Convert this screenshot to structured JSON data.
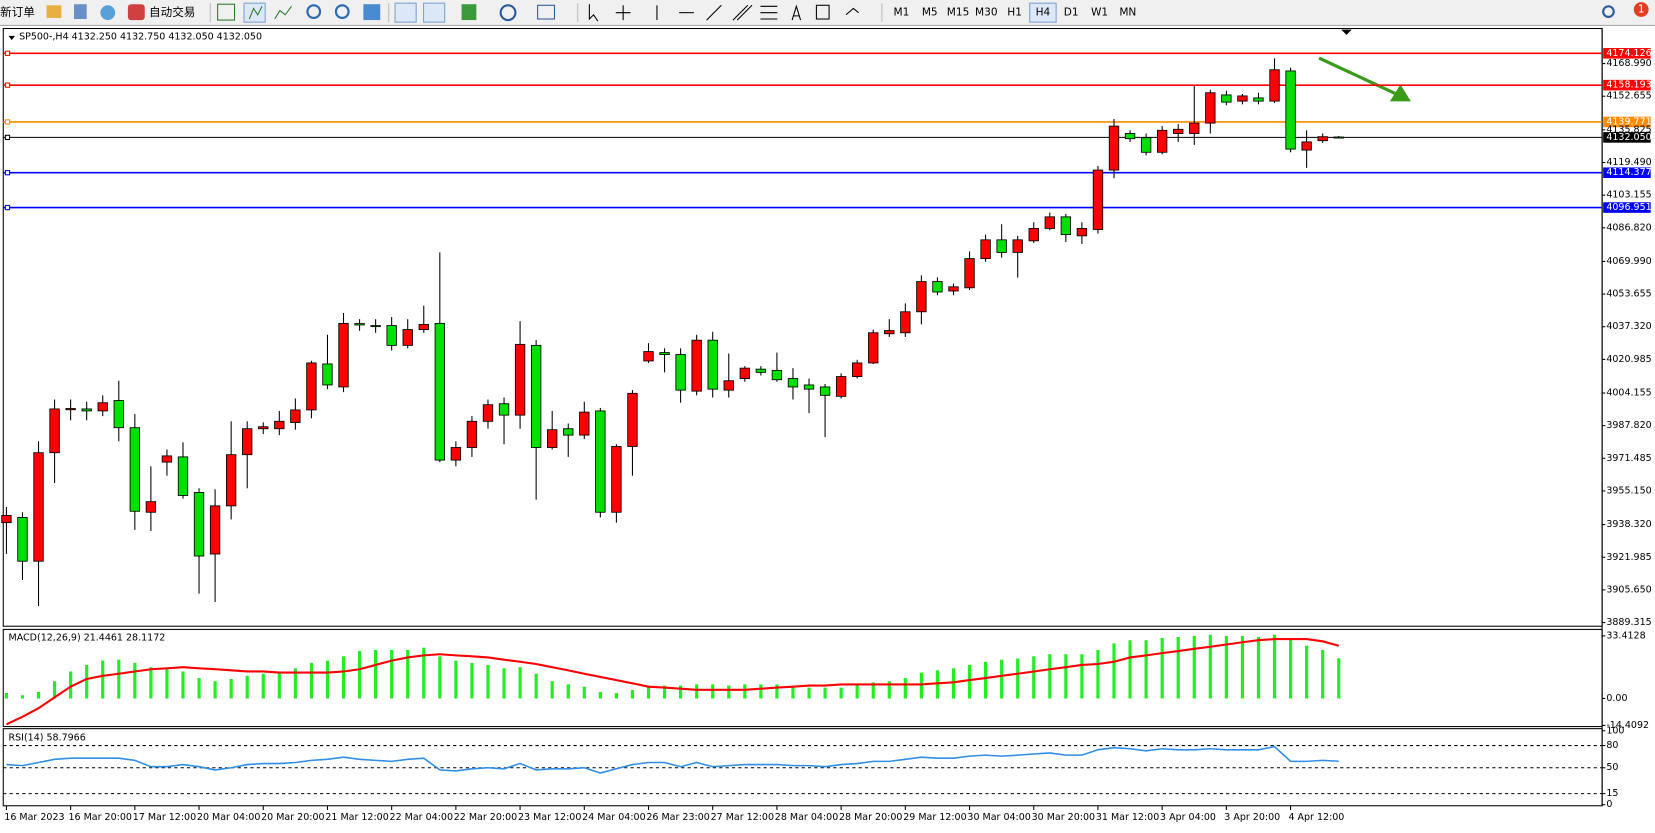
{
  "toolbar": {
    "new_order": "新订单",
    "auto_trading": "自动交易",
    "timeframes": [
      "M1",
      "M5",
      "M15",
      "M30",
      "H1",
      "H4",
      "D1",
      "W1",
      "MN"
    ],
    "active_timeframe": "H4",
    "alerts": "1"
  },
  "chart_data": [
    {
      "type": "candlestick",
      "title": "SP500-,H4  4132.250 4132.750 4132.050 4132.050",
      "up_color": "#ff0000",
      "down_color": "#00e000",
      "categories": [
        "16 Mar 2023",
        null,
        null,
        null,
        "16 Mar 20:00",
        null,
        null,
        null,
        "17 Mar 12:00",
        null,
        null,
        null,
        "20 Mar 04:00",
        null,
        null,
        null,
        "20 Mar 20:00",
        null,
        null,
        null,
        "21 Mar 12:00",
        null,
        null,
        null,
        "22 Mar 04:00",
        null,
        null,
        null,
        "22 Mar 20:00",
        null,
        null,
        null,
        "23 Mar 12:00",
        null,
        null,
        null,
        "24 Mar 04:00",
        null,
        null,
        null,
        "26 Mar 23:00",
        null,
        null,
        null,
        "27 Mar 12:00",
        null,
        null,
        null,
        "28 Mar 04:00",
        null,
        null,
        null,
        "28 Mar 20:00",
        null,
        null,
        null,
        "29 Mar 12:00",
        null,
        null,
        null,
        "30 Mar 04:00",
        null,
        null,
        null,
        "30 Mar 20:00",
        null,
        null,
        null,
        "31 Mar 12:00",
        null,
        null,
        null,
        "3 Apr 04:00",
        null,
        null,
        null,
        "3 Apr 20:00",
        null,
        null,
        null,
        "4 Apr 12:00",
        null,
        null,
        null
      ],
      "open": [
        3939.3,
        3941.9,
        3920.0,
        3974.3,
        3995.8,
        3996.2,
        3995.2,
        4000.4,
        3986.8,
        3944.5,
        3969.6,
        3972.2,
        3954.4,
        3923.6,
        3947.7,
        3973.3,
        3986.3,
        3986.3,
        3989.4,
        3995.7,
        4018.7,
        4007.2,
        4038.9,
        4037.9,
        4037.9,
        4028.0,
        4035.9,
        4039.0,
        3970.6,
        3976.9,
        3990.0,
        3998.8,
        3993.1,
        4028.0,
        3976.9,
        3986.3,
        3983.1,
        3995.2,
        3944.5,
        3977.4,
        4020.2,
        4024.4,
        4023.4,
        4005.1,
        4030.6,
        4005.6,
        4011.4,
        4016.1,
        4015.5,
        4011.4,
        4008.2,
        4007.2,
        4002.5,
        4012.4,
        4019.2,
        4033.8,
        4034.3,
        4044.8,
        4059.9,
        4055.2,
        4056.8,
        4071.4,
        4080.8,
        4074.5,
        4080.3,
        4086.5,
        4092.3,
        4082.8,
        4086.0,
        4115.7,
        4134.0,
        4131.9,
        4124.6,
        4134.0,
        4134.0,
        4139.2,
        4153.3,
        4150.2,
        4151.8,
        4150.2,
        4165.3,
        4125.7,
        4130.4,
        4132.25
      ],
      "high": [
        3947.1,
        3944.5,
        3980.0,
        4000.9,
        4000.9,
        3999.8,
        4003.0,
        4010.3,
        3993.6,
        3967.5,
        3975.9,
        3979.5,
        3956.5,
        3956.0,
        3990.0,
        3990.0,
        3989.5,
        3995.2,
        4001.4,
        4020.3,
        4033.3,
        4044.2,
        4041.1,
        4041.1,
        4042.2,
        4041.1,
        4047.9,
        4074.5,
        3980.0,
        3992.6,
        4000.9,
        4001.9,
        4040.1,
        4030.6,
        3995.2,
        3988.9,
        3999.8,
        3996.7,
        3978.5,
        4005.6,
        4029.1,
        4026.5,
        4026.5,
        4033.3,
        4034.8,
        4023.9,
        4017.6,
        4017.6,
        4024.4,
        4016.6,
        4011.4,
        4008.7,
        4014.0,
        4020.8,
        4035.9,
        4041.1,
        4049.0,
        4063.0,
        4062.0,
        4058.9,
        4075.0,
        4083.4,
        4088.6,
        4082.8,
        4089.6,
        4094.4,
        4093.8,
        4089.6,
        4117.8,
        4141.3,
        4135.6,
        4134.0,
        4137.7,
        4138.7,
        4158.0,
        4155.9,
        4155.4,
        4153.8,
        4154.4,
        4171.6,
        4166.9,
        4135.6,
        4134.0,
        4132.75
      ],
      "low": [
        3923.6,
        3910.6,
        3897.6,
        3959.1,
        3990.5,
        3990.5,
        3992.6,
        3980.0,
        3935.7,
        3935.1,
        3962.8,
        3951.3,
        3903.8,
        3899.6,
        3940.9,
        3956.5,
        3983.6,
        3983.1,
        3985.8,
        3991.5,
        4006.1,
        4004.6,
        4035.3,
        4034.3,
        4025.4,
        4026.5,
        4034.3,
        3969.6,
        3967.5,
        3972.2,
        3986.3,
        3978.5,
        3986.3,
        3950.8,
        3975.9,
        3972.2,
        3981.1,
        3941.9,
        3939.3,
        3962.8,
        4019.2,
        4014.5,
        3999.3,
        4003.0,
        4001.9,
        4001.9,
        4009.8,
        4012.9,
        4009.8,
        4000.9,
        3994.1,
        3982.1,
        4001.4,
        4011.4,
        4018.7,
        4032.2,
        4032.2,
        4038.5,
        4053.1,
        4053.1,
        4055.7,
        4069.8,
        4071.9,
        4061.9,
        4079.2,
        4085.5,
        4079.7,
        4078.7,
        4083.9,
        4111.6,
        4129.8,
        4123.1,
        4123.6,
        4129.8,
        4128.3,
        4134.0,
        4148.1,
        4148.6,
        4148.6,
        4149.2,
        4124.6,
        4116.8,
        4129.3,
        4132.05
      ],
      "close": [
        3942.9,
        3920.0,
        3974.3,
        3996.2,
        3996.4,
        3995.2,
        3999.3,
        3986.8,
        3945.0,
        3949.8,
        3972.7,
        3952.9,
        3922.6,
        3947.7,
        3973.3,
        3986.3,
        3987.3,
        3990.0,
        3995.7,
        4019.2,
        4008.2,
        4039.0,
        4038.2,
        4037.5,
        4028.0,
        4035.9,
        4038.5,
        3970.6,
        3976.9,
        3990.0,
        3998.3,
        3993.1,
        4028.5,
        3976.9,
        3985.8,
        3983.1,
        3994.6,
        3944.5,
        3977.4,
        4004.0,
        4024.9,
        4023.4,
        4005.6,
        4030.6,
        4006.1,
        4010.3,
        4016.6,
        4014.5,
        4010.8,
        4007.2,
        4006.1,
        4003.0,
        4012.4,
        4019.2,
        4034.3,
        4035.4,
        4044.8,
        4059.9,
        4054.7,
        4057.3,
        4071.4,
        4080.8,
        4074.5,
        4080.8,
        4086.5,
        4092.3,
        4083.4,
        4086.5,
        4115.7,
        4137.7,
        4131.4,
        4124.6,
        4135.6,
        4136.1,
        4139.2,
        4154.4,
        4149.7,
        4152.8,
        4150.2,
        4165.9,
        4126.2,
        4129.8,
        4132.4,
        4132.05
      ],
      "ylim": [
        3888,
        4186
      ],
      "yticks": [
        {
          "value": 4168.99,
          "label": "4168.990"
        },
        4152.655,
        4135.825,
        {
          "value": 4119.49,
          "label": "4119.490"
        },
        4103.155,
        {
          "value": 4086.82,
          "label": "4086.820"
        },
        {
          "value": 4069.99,
          "label": "4069.990"
        },
        4053.655,
        {
          "value": 4037.32,
          "label": "4037.320"
        },
        4020.985,
        4004.155,
        {
          "value": 3987.82,
          "label": "3987.820"
        },
        3971.485,
        {
          "value": 3955.15,
          "label": "3955.150"
        },
        {
          "value": 3938.32,
          "label": "3938.320"
        },
        3921.985,
        {
          "value": 3905.65,
          "label": "3905.650"
        },
        3889.315
      ],
      "levels": [
        {
          "price": 4174.126,
          "label": "4174.126",
          "color": "#ff0000"
        },
        {
          "price": 4158.193,
          "label": "4158.193",
          "color": "#ff0000"
        },
        {
          "price": 4139.771,
          "label": "4139.771",
          "color": "#ff8c00"
        },
        {
          "price": 4132.05,
          "label": "4132.050",
          "color": "#000000"
        },
        {
          "price": 4114.377,
          "label": "4114.377",
          "color": "#0000ff"
        },
        {
          "price": 4096.951,
          "label": "4096.951",
          "color": "#0000ff"
        }
      ]
    },
    {
      "type": "macd",
      "title": "MACD(12,26,9) 21.4461 28.1172",
      "color": "#22ee22",
      "signal_color": "#ff0000",
      "values": [
        2.9,
        1.7,
        3.5,
        9.2,
        14.4,
        17.9,
        20.2,
        20.7,
        19.0,
        16.7,
        15.6,
        14.4,
        10.9,
        9.2,
        10.4,
        12.1,
        13.2,
        14.4,
        16.1,
        19.0,
        20.2,
        22.5,
        25.3,
        25.9,
        25.9,
        25.9,
        27.1,
        22.5,
        20.2,
        19.0,
        17.9,
        16.1,
        16.7,
        13.2,
        9.2,
        7.5,
        6.3,
        3.5,
        2.9,
        4.6,
        6.3,
        6.9,
        6.9,
        7.5,
        7.5,
        6.9,
        7.5,
        7.5,
        7.5,
        6.3,
        5.8,
        5.8,
        5.8,
        6.9,
        8.6,
        9.2,
        10.9,
        13.8,
        15.0,
        16.1,
        17.9,
        19.6,
        20.7,
        21.3,
        22.5,
        23.6,
        23.6,
        23.6,
        25.9,
        29.4,
        31.1,
        31.1,
        32.3,
        32.8,
        33.4,
        34.0,
        33.4,
        33.4,
        32.8,
        34.0,
        31.7,
        28.2,
        25.9,
        21.4461
      ],
      "signal": [
        -13.8,
        -9.8,
        -5.2,
        0.6,
        6.3,
        10.4,
        12.1,
        13.2,
        14.4,
        15.6,
        16.1,
        16.7,
        16.1,
        15.6,
        15.0,
        14.4,
        14.4,
        13.8,
        13.8,
        13.8,
        13.8,
        14.4,
        15.6,
        17.9,
        20.2,
        21.9,
        23.0,
        23.6,
        23.0,
        22.5,
        21.9,
        20.7,
        19.6,
        18.4,
        16.7,
        15.0,
        13.2,
        11.5,
        9.8,
        8.1,
        6.3,
        5.8,
        5.2,
        4.6,
        4.6,
        4.6,
        4.6,
        5.2,
        5.8,
        6.3,
        6.9,
        6.9,
        7.5,
        7.5,
        7.5,
        7.5,
        7.5,
        7.5,
        8.1,
        8.6,
        9.8,
        10.9,
        12.1,
        13.2,
        14.4,
        15.6,
        16.7,
        17.9,
        18.4,
        19.6,
        21.9,
        23.0,
        24.2,
        25.3,
        26.5,
        27.6,
        28.8,
        30.0,
        31.1,
        31.7,
        31.7,
        31.7,
        30.5,
        28.1172
      ],
      "ylim": [
        -15,
        36.3
      ],
      "yticks": [
        33.4128,
        {
          "value": 0,
          "label": "0.00"
        },
        -14.4092
      ]
    },
    {
      "type": "line",
      "title": "RSI(14) 58.7966",
      "color": "#2f8fe6",
      "values": [
        54.3,
        52.9,
        57.1,
        61.4,
        62.9,
        62.9,
        62.9,
        62.9,
        60,
        51.4,
        51.4,
        54.3,
        51.4,
        47.1,
        50,
        54.3,
        55.7,
        55.7,
        57.1,
        60,
        61.4,
        64.3,
        61.4,
        60,
        58.6,
        61.4,
        62.9,
        47.1,
        45.7,
        48.6,
        50,
        48.6,
        55.7,
        47.1,
        48.6,
        48.6,
        50,
        42.9,
        48.6,
        54.3,
        57.1,
        57.1,
        51.4,
        57.1,
        51.4,
        52.9,
        54.3,
        54.3,
        54.3,
        52.9,
        52.9,
        51.4,
        54.3,
        55.7,
        58.6,
        58.6,
        61.4,
        64.3,
        62.9,
        62.9,
        65.7,
        67.1,
        65.7,
        67.1,
        68.6,
        70,
        67.1,
        67.1,
        74.3,
        77.1,
        75.7,
        72.9,
        75.7,
        74.3,
        74.3,
        75.7,
        74.3,
        74.3,
        74.3,
        78.6,
        58.6,
        58.6,
        60,
        58.7966
      ],
      "ylim": [
        0,
        100
      ],
      "yticks": [
        100,
        80,
        50,
        15,
        0
      ],
      "level_lines": [
        80,
        50,
        15
      ]
    }
  ]
}
